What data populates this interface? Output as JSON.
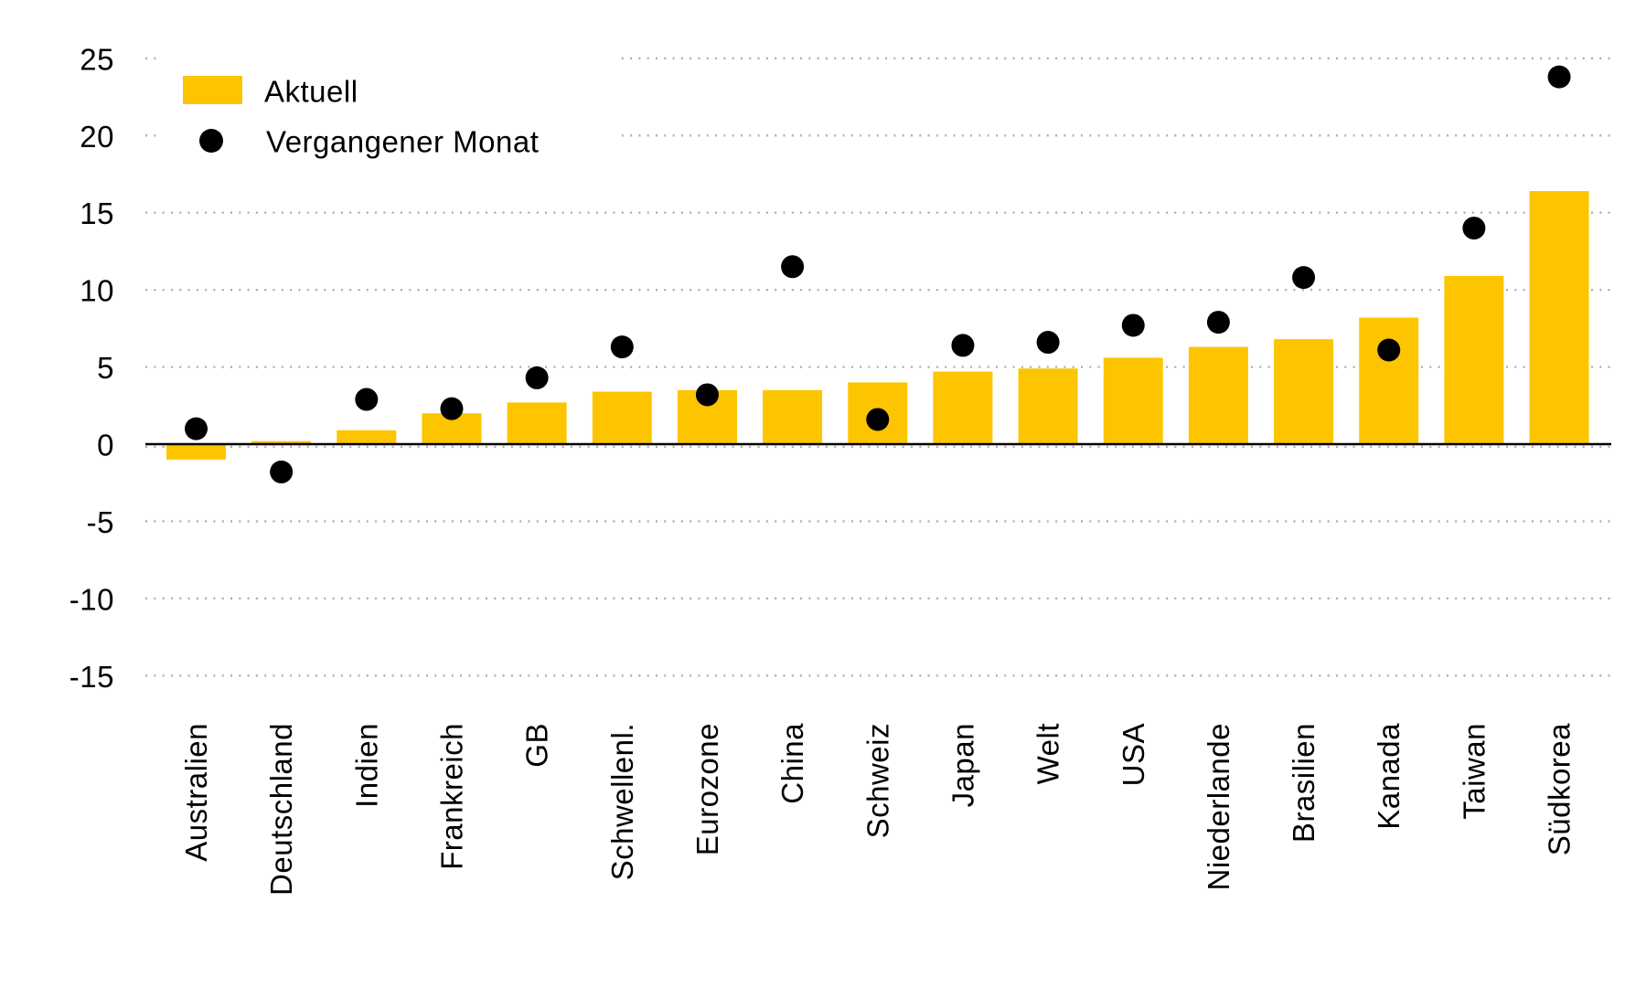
{
  "chart_data": {
    "type": "bar",
    "title": "",
    "xlabel": "",
    "ylabel": "",
    "categories": [
      "Australien",
      "Deutschland",
      "Indien",
      "Frankreich",
      "GB",
      "Schwellenl.",
      "Eurozone",
      "China",
      "Schweiz",
      "Japan",
      "Welt",
      "USA",
      "Niederlande",
      "Brasilien",
      "Kanada",
      "Taiwan",
      "Südkorea"
    ],
    "series": [
      {
        "name": "Aktuell",
        "type": "bar",
        "color": "#FDC500",
        "values": [
          -1.0,
          0.2,
          0.9,
          2.0,
          2.7,
          3.4,
          3.5,
          3.5,
          4.0,
          4.7,
          4.9,
          5.6,
          6.3,
          6.8,
          8.2,
          10.9,
          16.4
        ]
      },
      {
        "name": "Vergangener Monat",
        "type": "scatter",
        "color": "#000000",
        "values": [
          1.0,
          -1.8,
          2.9,
          2.3,
          4.3,
          6.3,
          3.2,
          11.5,
          1.6,
          6.4,
          6.6,
          7.7,
          7.9,
          10.8,
          6.1,
          14.0,
          23.8
        ]
      }
    ],
    "yticks": [
      25,
      20,
      15,
      10,
      5,
      0,
      -5,
      -10,
      -15
    ],
    "ylim": [
      -17.8,
      26.3
    ],
    "grid": "dotted-horizontal",
    "gridline_color": "#ADADAD",
    "axis_color": "#000000",
    "legend_position": "top-left",
    "xtick_rotation_deg": 90
  },
  "legend": {
    "items": [
      {
        "label": "Aktuell",
        "swatch": "bar",
        "color": "#FDC500"
      },
      {
        "label": "Vergangener Monat",
        "swatch": "dot",
        "color": "#000000"
      }
    ]
  }
}
